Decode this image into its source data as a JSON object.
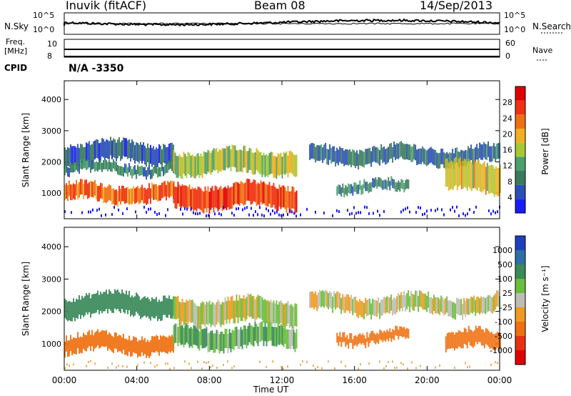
{
  "header": {
    "station": "Inuvik (fitACF)",
    "beam": "Beam 08",
    "date": "14/Sep/2013"
  },
  "nsky_panel": {
    "left_label": "N.Sky",
    "right_label": "N.Search",
    "left_ticks": [
      "10^5",
      "10^0"
    ],
    "right_ticks": [
      "10^5",
      "10^0"
    ]
  },
  "freq_panel": {
    "left_label_1": "Freq.",
    "left_label_2": "[MHz]",
    "right_label": "Nave",
    "left_ticks": [
      "10",
      "8"
    ],
    "right_ticks": [
      "60",
      "0"
    ]
  },
  "cpid": {
    "label": "CPID",
    "value": "N/A -3350"
  },
  "colors": {
    "power": [
      "#1a1aff",
      "#2b4fb8",
      "#3a7a5c",
      "#4aa06a",
      "#a8c832",
      "#f0b020",
      "#f07010",
      "#f03010",
      "#e00000"
    ],
    "velocity": [
      "#1f3fbf",
      "#2e6fa8",
      "#3a8a5a",
      "#6abf3a",
      "#bdbdb5",
      "#f09a20",
      "#f07010",
      "#e83010",
      "#e00000"
    ]
  },
  "chart_data": [
    {
      "type": "heatmap",
      "name": "power-panel",
      "ylabel": "Slant Range [km]",
      "ylim": [
        180,
        4600
      ],
      "yticks": [
        1000,
        2000,
        3000,
        4000
      ],
      "xlim": [
        "00:00",
        "24:00"
      ],
      "colorbar": {
        "label": "Power [dB]",
        "ticks": [
          4,
          8,
          12,
          16,
          20,
          24,
          28
        ],
        "range": [
          0,
          32
        ]
      },
      "bands": [
        {
          "t_start": 0.0,
          "t_end": 6.0,
          "r_center": 2300,
          "r_width": 600,
          "value_db": 6
        },
        {
          "t_start": 0.0,
          "t_end": 6.0,
          "r_center": 1800,
          "r_width": 300,
          "value_db": 10
        },
        {
          "t_start": 0.0,
          "t_end": 6.0,
          "r_center": 1000,
          "r_width": 500,
          "value_db": 24
        },
        {
          "t_start": 6.0,
          "t_end": 12.8,
          "r_center": 900,
          "r_width": 700,
          "value_db": 26
        },
        {
          "t_start": 6.0,
          "t_end": 12.8,
          "r_center": 2000,
          "r_width": 700,
          "value_db": 16
        },
        {
          "t_start": 13.5,
          "t_end": 24.0,
          "r_center": 2200,
          "r_width": 500,
          "value_db": 8
        },
        {
          "t_start": 15.0,
          "t_end": 19.0,
          "r_center": 1200,
          "r_width": 300,
          "value_db": 10
        },
        {
          "t_start": 21.0,
          "t_end": 24.0,
          "r_center": 1500,
          "r_width": 900,
          "value_db": 18
        }
      ]
    },
    {
      "type": "heatmap",
      "name": "velocity-panel",
      "ylabel": "Slant Range [km]",
      "xlabel": "Time UT",
      "ylim": [
        180,
        4600
      ],
      "yticks": [
        1000,
        2000,
        3000,
        4000
      ],
      "xlim": [
        "00:00",
        "24:00"
      ],
      "xticks": [
        "00:00",
        "04:00",
        "08:00",
        "12:00",
        "16:00",
        "20:00",
        "00:00"
      ],
      "colorbar": {
        "label": "Velocity [m s⁻¹]",
        "ticks": [
          1000,
          500,
          100,
          25,
          -25,
          -100,
          -500,
          -1000
        ]
      },
      "bands": [
        {
          "t_start": 0.0,
          "t_end": 6.0,
          "r_center": 2200,
          "r_width": 600,
          "value_ms": 200
        },
        {
          "t_start": 0.0,
          "t_end": 6.0,
          "r_center": 1000,
          "r_width": 500,
          "value_ms": -300
        },
        {
          "t_start": 6.0,
          "t_end": 12.8,
          "r_center": 1200,
          "r_width": 600,
          "value_ms": 80
        },
        {
          "t_start": 6.0,
          "t_end": 12.8,
          "r_center": 2000,
          "r_width": 700,
          "value_ms": 0
        },
        {
          "t_start": 13.5,
          "t_end": 24.0,
          "r_center": 2200,
          "r_width": 500,
          "value_ms": 0
        },
        {
          "t_start": 15.0,
          "t_end": 19.0,
          "r_center": 1200,
          "r_width": 300,
          "value_ms": -200
        },
        {
          "t_start": 21.0,
          "t_end": 24.0,
          "r_center": 1100,
          "r_width": 500,
          "value_ms": -300
        }
      ]
    }
  ]
}
